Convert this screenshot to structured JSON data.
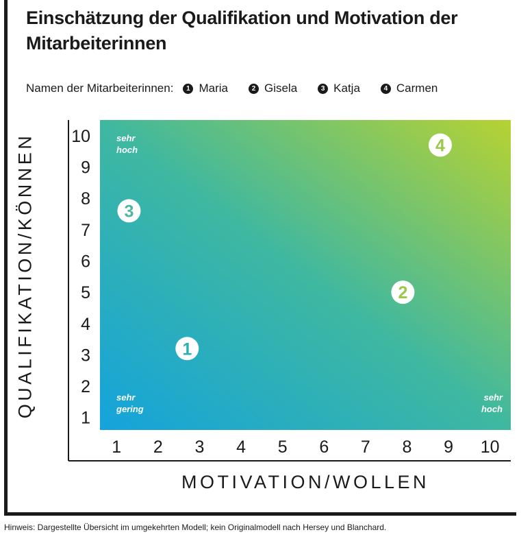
{
  "title": "Einschätzung der Qualifikation und Motivation der Mitarbeiterinnen",
  "legend": {
    "label": "Namen der Mitarbeiterinnen:",
    "items": [
      {
        "marker": "1",
        "name": "Maria"
      },
      {
        "marker": "2",
        "name": "Gisela"
      },
      {
        "marker": "3",
        "name": "Katja"
      },
      {
        "marker": "4",
        "name": "Carmen"
      }
    ]
  },
  "corner_labels": {
    "top_left": [
      "sehr",
      "hoch"
    ],
    "bottom_left": [
      "sehr",
      "gering"
    ],
    "bottom_right": [
      "sehr",
      "hoch"
    ]
  },
  "footnote": "Hinweis: Dargestellte Übersicht im umgekehrten Modell; kein Originalmodell nach Hersey und Blanchard.",
  "colors": {
    "gradient_blue": "#14a3dc",
    "gradient_teal": "#3fb8a0",
    "gradient_green": "#b7d232",
    "marker_fill": "#ffffff",
    "marker_text_teal": "#4fb69c",
    "marker_text_green": "#9bc84a",
    "marker_text_blue": "#2bb0b2",
    "text": "#1a1a1a"
  },
  "chart_data": {
    "type": "scatter",
    "title": "Einschätzung der Qualifikation und Motivation der Mitarbeiterinnen",
    "xlabel": "MOTIVATION/WOLLEN",
    "ylabel": "QUALIFIKATION/KÖNNEN",
    "xlim": [
      0.6,
      10.5
    ],
    "ylim": [
      0.6,
      10.5
    ],
    "x_ticks": [
      1,
      2,
      3,
      4,
      5,
      6,
      7,
      8,
      9,
      10
    ],
    "y_ticks": [
      1,
      2,
      3,
      4,
      5,
      6,
      7,
      8,
      9,
      10
    ],
    "grid": false,
    "points": [
      {
        "label": "1",
        "name": "Maria",
        "x": 2.7,
        "y": 3.2
      },
      {
        "label": "2",
        "name": "Gisela",
        "x": 7.9,
        "y": 5.0
      },
      {
        "label": "3",
        "name": "Katja",
        "x": 1.3,
        "y": 7.6
      },
      {
        "label": "4",
        "name": "Carmen",
        "x": 8.8,
        "y": 9.7
      }
    ]
  }
}
